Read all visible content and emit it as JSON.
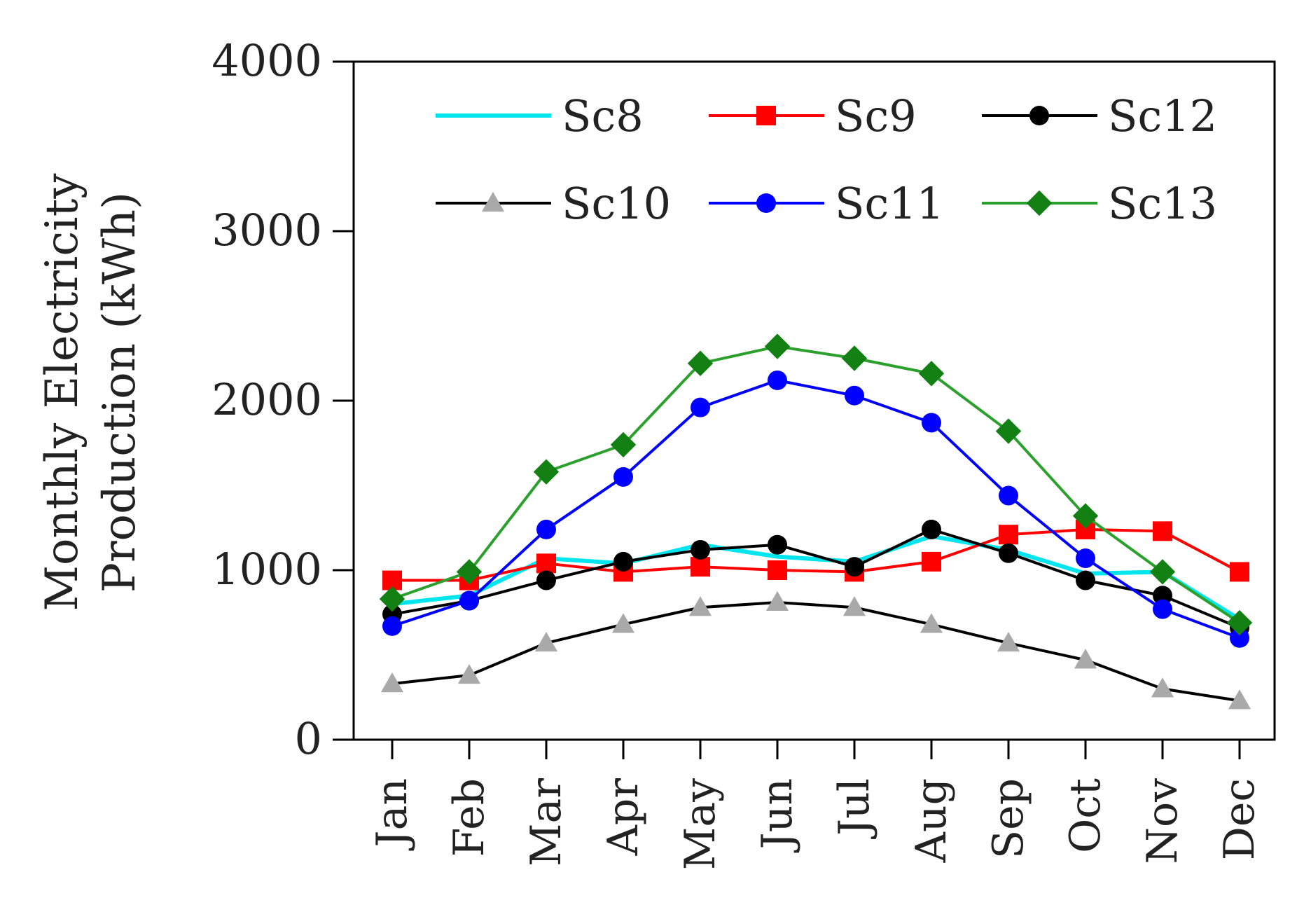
{
  "chart_data": {
    "type": "line",
    "title": "",
    "xlabel": "",
    "ylabel_line1": "Monthly Electricity",
    "ylabel_line2": "Production (kWh)",
    "ylim": [
      0,
      4000
    ],
    "yticks": [
      "0",
      "1000",
      "2000",
      "3000",
      "4000"
    ],
    "categories": [
      "Jan",
      "Feb",
      "Mar",
      "Apr",
      "May",
      "Jun",
      "Jul",
      "Aug",
      "Sep",
      "Oct",
      "Nov",
      "Dec"
    ],
    "legend_position": "top",
    "grid": false,
    "series": [
      {
        "name": "Sc8",
        "color": "#00e5ee",
        "marker": "none",
        "values": [
          800,
          850,
          1070,
          1040,
          1150,
          1080,
          1050,
          1200,
          1120,
          980,
          990,
          710
        ]
      },
      {
        "name": "Sc9",
        "color": "#ff0000",
        "marker": "square",
        "values": [
          940,
          940,
          1040,
          990,
          1020,
          1000,
          990,
          1050,
          1210,
          1240,
          1230,
          990
        ]
      },
      {
        "name": "Sc12",
        "color": "#000000",
        "marker": "circle",
        "values": [
          740,
          820,
          940,
          1050,
          1120,
          1150,
          1020,
          1240,
          1100,
          940,
          850,
          660
        ]
      },
      {
        "name": "Sc10",
        "color": "#000000",
        "marker": "triangle",
        "marker_color": "#a9a9a9",
        "values": [
          330,
          380,
          570,
          680,
          780,
          810,
          780,
          680,
          570,
          470,
          300,
          230
        ]
      },
      {
        "name": "Sc11",
        "color": "#0000ff",
        "marker": "circle",
        "values": [
          670,
          820,
          1240,
          1550,
          1960,
          2120,
          2030,
          1870,
          1440,
          1070,
          770,
          600
        ]
      },
      {
        "name": "Sc13",
        "color": "#2ca02c",
        "marker": "diamond",
        "marker_color": "#128012",
        "values": [
          830,
          990,
          1580,
          1740,
          2220,
          2320,
          2250,
          2160,
          1820,
          1320,
          990,
          690
        ]
      }
    ]
  }
}
